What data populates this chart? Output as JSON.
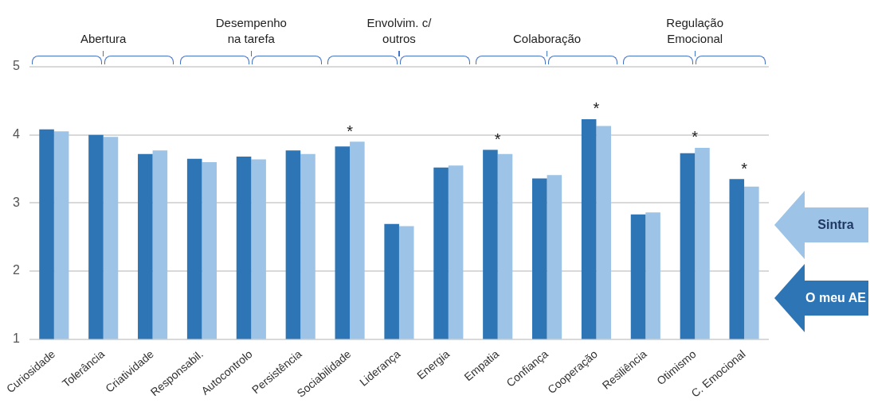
{
  "chart_data": {
    "type": "bar",
    "categories": [
      "Curiosidade",
      "Tolerância",
      "Criatividade",
      "Responsabil.",
      "Autocontrolo",
      "Persistência",
      "Sociabilidade",
      "Liderança",
      "Energia",
      "Empatia",
      "Confiança",
      "Cooperação",
      "Resiliência",
      "Otimismo",
      "C. Emocional"
    ],
    "series": [
      {
        "name": "O meu AE",
        "color": "#2e75b6",
        "values": [
          4.08,
          4.0,
          3.72,
          3.65,
          3.68,
          3.77,
          3.83,
          2.69,
          3.52,
          3.78,
          3.36,
          4.23,
          2.83,
          3.73,
          3.35
        ]
      },
      {
        "name": "Sintra",
        "color": "#9dc3e6",
        "values": [
          4.05,
          3.97,
          3.77,
          3.6,
          3.64,
          3.72,
          3.9,
          2.66,
          3.55,
          3.72,
          3.41,
          4.13,
          2.86,
          3.81,
          3.24
        ]
      }
    ],
    "ylim": [
      1,
      5
    ],
    "yticks": [
      1,
      2,
      3,
      4,
      5
    ],
    "grid": "y",
    "legend": "right",
    "annotations": [
      "Abertura",
      "Desempenho na tarefa",
      "Envolvim. c/ outros",
      "Colaboração",
      "Regulação Emocional",
      {
        "text": "*",
        "x": "Sociabilidade",
        "y": 3.9
      },
      {
        "text": "*",
        "x": "Empatia",
        "y": 3.78
      },
      {
        "text": "*",
        "x": "Cooperação",
        "y": 4.23
      },
      {
        "text": "*",
        "x": "Otimismo",
        "y": 3.81
      },
      {
        "text": "*",
        "x": "C. Emocional",
        "y": 3.35
      }
    ]
  }
}
